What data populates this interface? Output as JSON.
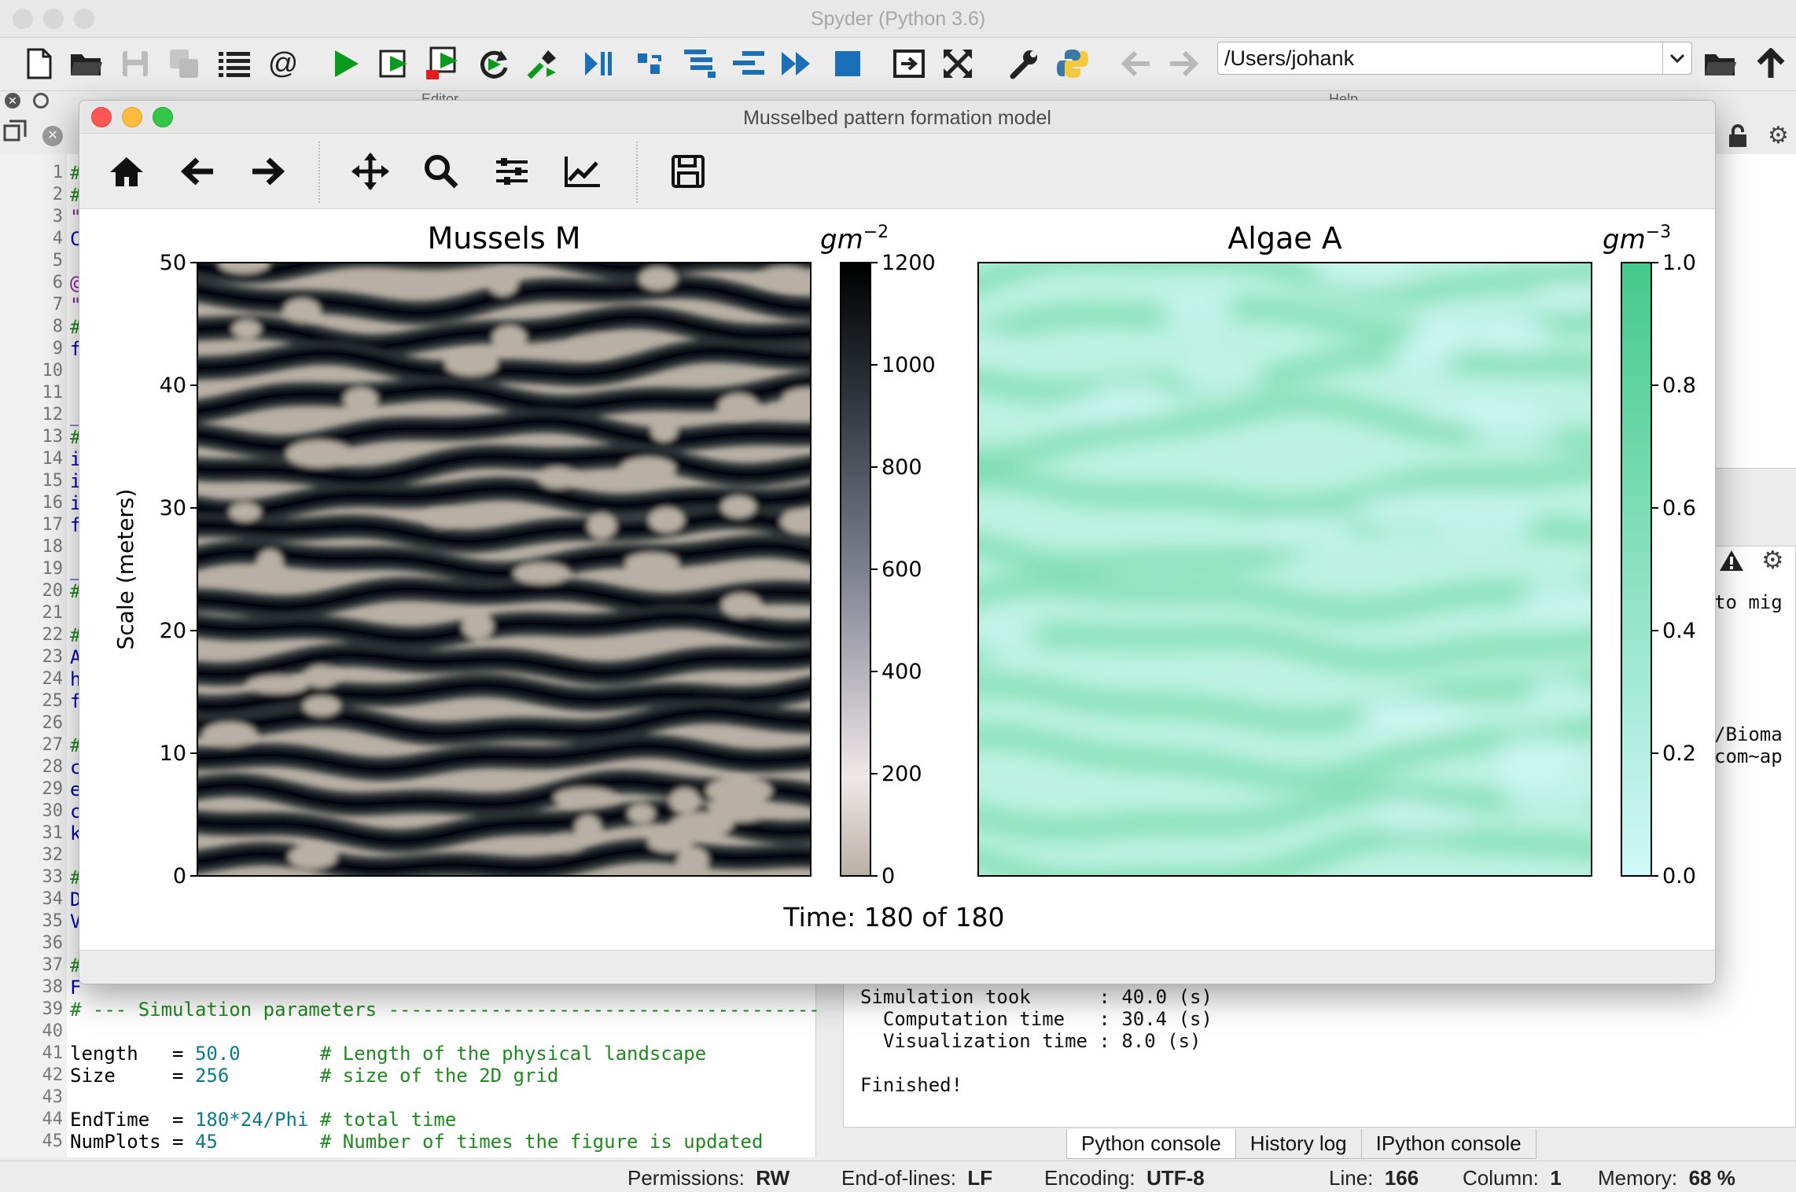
{
  "window": {
    "title": "Spyder (Python 3.6)",
    "path": "/Users/johank"
  },
  "panes": {
    "editor": "Editor",
    "help": "Help"
  },
  "editor": {
    "line_numbers": [
      "1",
      "2",
      "3",
      "4",
      "5",
      "6",
      "7",
      "8",
      "9",
      "10",
      "11",
      "12",
      "13",
      "14",
      "15",
      "16",
      "17",
      "18",
      "19",
      "20",
      "21",
      "22",
      "23",
      "24",
      "25",
      "26",
      "27",
      "28",
      "29",
      "30",
      "31",
      "32",
      "33",
      "34",
      "35",
      "36",
      "37",
      "38",
      "39",
      "40",
      "41",
      "42",
      "43",
      "44",
      "45"
    ],
    "lines": [
      {
        "n": "39",
        "code": "# --- Simulation parameters --------------------------------------",
        "cls": "cm"
      },
      {
        "n": "40",
        "code": ""
      },
      {
        "n": "41",
        "a": "length   = ",
        "b": "50.0",
        "c": "       # Length of the physical landscape"
      },
      {
        "n": "42",
        "a": "Size     = ",
        "b": "256",
        "c": "        # size of the 2D grid"
      },
      {
        "n": "43",
        "code": ""
      },
      {
        "n": "44",
        "a": "EndTime  = ",
        "b": "180*24/Phi",
        "c": " # total time"
      },
      {
        "n": "45",
        "a": "NumPlots = ",
        "b": "45",
        "c": "         # Number of times the figure is updated"
      }
    ],
    "hidden_first_chars": [
      "#",
      "#",
      "\"",
      "C",
      "",
      "@",
      "\"",
      "#",
      "f",
      "",
      "",
      "_",
      "#",
      "i",
      "i",
      "i",
      "f",
      "",
      "_",
      "#",
      "",
      "#",
      "A",
      "h",
      "f",
      "",
      "#",
      "c",
      "e",
      "c",
      "k",
      "",
      "#",
      "D",
      "V",
      "",
      "#",
      "F"
    ]
  },
  "console": {
    "partial": [
      "to mig",
      "/Bioma",
      "com~ap"
    ],
    "lines": [
      "Simulation took      : 40.0 (s)",
      "  Computation time   : 30.4 (s)",
      "  Visualization time : 8.0 (s)",
      "",
      "Finished!"
    ],
    "tabs": [
      "Python console",
      "History log",
      "IPython console"
    ]
  },
  "status": {
    "permissions_label": "Permissions:",
    "permissions": "RW",
    "eol_label": "End-of-lines:",
    "eol": "LF",
    "encoding_label": "Encoding:",
    "encoding": "UTF-8",
    "line_label": "Line:",
    "line": "166",
    "column_label": "Column:",
    "column": "1",
    "memory_label": "Memory:",
    "memory": "68 %"
  },
  "figure": {
    "title": "Musselbed pattern formation model",
    "time_label": "Time: 180 of 180"
  },
  "chart_data": [
    {
      "type": "heatmap",
      "title": "Mussels M",
      "ylabel": "Scale (meters)",
      "yticks": [
        "0",
        "10",
        "20",
        "30",
        "40",
        "50"
      ],
      "ylim": [
        0,
        50
      ],
      "colorbar": {
        "label": "gm",
        "label_exp": "−2",
        "ticks": [
          "0",
          "200",
          "400",
          "600",
          "800",
          "1000",
          "1200"
        ],
        "range": [
          0,
          1200
        ],
        "colors": [
          "#b8b0a4",
          "#efe8e8",
          "#7d8090",
          "#2a3036",
          "#000000"
        ]
      }
    },
    {
      "type": "heatmap",
      "title": "Algae A",
      "colorbar": {
        "label": "gm",
        "label_exp": "−3",
        "ticks": [
          "0.0",
          "0.2",
          "0.4",
          "0.6",
          "0.8",
          "1.0"
        ],
        "range": [
          0,
          1
        ],
        "colors": [
          "#d0f8f8",
          "#44c98a"
        ]
      }
    }
  ]
}
